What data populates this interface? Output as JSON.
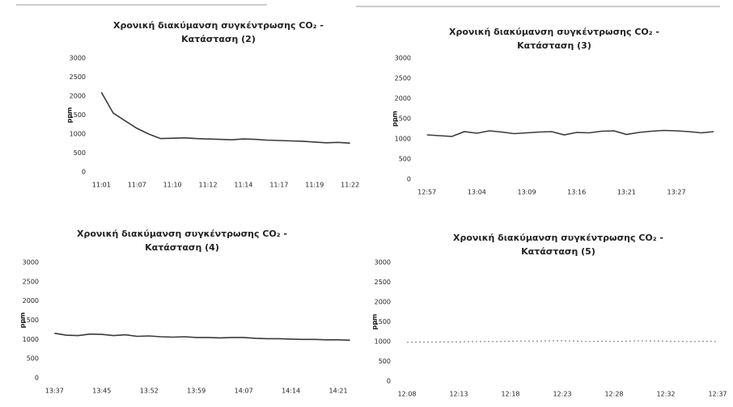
{
  "chart_data": [
    {
      "type": "line",
      "title": [
        "Χρονική διακύμανση συγκέντρωσης CO₂ -",
        "Κατάσταση (2)"
      ],
      "y_label": "ppm",
      "categories": [
        "11:01",
        null,
        null,
        "11:07",
        null,
        null,
        "11:10",
        null,
        null,
        "11:12",
        null,
        null,
        "11:14",
        null,
        null,
        "11:17",
        null,
        null,
        "11:19",
        null,
        null,
        "11:22"
      ],
      "series": [
        {
          "color": "#3a3a3a",
          "values": [
            2100,
            1550,
            1350,
            1150,
            1000,
            880,
            890,
            900,
            880,
            870,
            860,
            850,
            870,
            860,
            840,
            830,
            820,
            810,
            790,
            770,
            780,
            760
          ]
        }
      ],
      "ylim": [
        0,
        3000
      ],
      "yticks": [
        0,
        500,
        1000,
        1500,
        2000,
        2500,
        3000
      ],
      "grid": false,
      "line_style": "solid"
    },
    {
      "type": "line",
      "title": [
        "Χρονική διακύμανση συγκέντρωσης CO₂ -",
        "Κατάσταση (3)"
      ],
      "y_label": "ppm",
      "categories": [
        "12:57",
        null,
        null,
        null,
        "13:04",
        null,
        null,
        null,
        "13:09",
        null,
        null,
        null,
        "13:16",
        null,
        null,
        null,
        "13:21",
        null,
        null,
        null,
        "13:27",
        null,
        null,
        null
      ],
      "series": [
        {
          "color": "#3a3a3a",
          "values": [
            1100,
            1080,
            1060,
            1180,
            1140,
            1200,
            1170,
            1130,
            1150,
            1170,
            1180,
            1100,
            1160,
            1150,
            1190,
            1200,
            1110,
            1160,
            1190,
            1210,
            1200,
            1180,
            1150,
            1180
          ]
        }
      ],
      "ylim": [
        0,
        3000
      ],
      "yticks": [
        0,
        500,
        1000,
        1500,
        2000,
        2500,
        3000
      ],
      "grid": false,
      "line_style": "solid"
    },
    {
      "type": "line",
      "title": [
        "Χρονική διακύμανση συγκέντρωσης CO₂ -",
        "Κατάσταση (4)"
      ],
      "y_label": "ppm",
      "categories": [
        "13:37",
        null,
        null,
        null,
        "13:45",
        null,
        null,
        null,
        "13:52",
        null,
        null,
        null,
        "13:59",
        null,
        null,
        null,
        "14:07",
        null,
        null,
        null,
        "14:14",
        null,
        null,
        null,
        "14:21",
        null
      ],
      "series": [
        {
          "color": "#3a3a3a",
          "values": [
            1160,
            1110,
            1100,
            1140,
            1130,
            1100,
            1120,
            1080,
            1090,
            1070,
            1060,
            1070,
            1050,
            1050,
            1040,
            1050,
            1050,
            1030,
            1020,
            1020,
            1010,
            1000,
            1000,
            990,
            990,
            980
          ]
        }
      ],
      "ylim": [
        0,
        3000
      ],
      "yticks": [
        0,
        500,
        1000,
        1500,
        2000,
        2500,
        3000
      ],
      "grid": false,
      "line_style": "solid"
    },
    {
      "type": "line",
      "title": [
        "Χρονική διακύμανση συγκέντρωσης CO₂ -",
        "Κατάσταση (5)"
      ],
      "y_label": "ppm",
      "categories": [
        "12:08",
        null,
        null,
        null,
        "12:13",
        null,
        null,
        null,
        "12:18",
        null,
        null,
        null,
        "12:23",
        null,
        null,
        null,
        "12:28",
        null,
        null,
        null,
        "12:32",
        null,
        null,
        null,
        "12:37"
      ],
      "series": [
        {
          "color": "#8a8a8a",
          "values": [
            980,
            990,
            985,
            995,
            990,
            1000,
            1005,
            1000,
            1010,
            1015,
            1010,
            1020,
            1020,
            1015,
            1000,
            1010,
            1005,
            1010,
            1020,
            1015,
            1010,
            1005,
            1000,
            1010,
            1000
          ]
        }
      ],
      "ylim": [
        0,
        3000
      ],
      "yticks": [
        0,
        500,
        1000,
        1500,
        2000,
        2500,
        3000
      ],
      "grid": false,
      "line_style": "dotted"
    }
  ]
}
